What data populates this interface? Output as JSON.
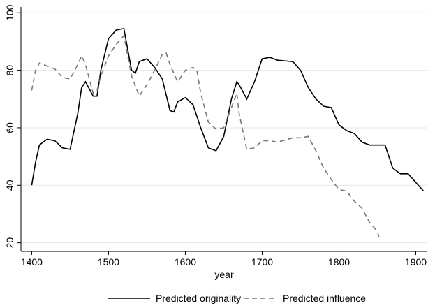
{
  "chart_data": {
    "type": "line",
    "xlabel": "year",
    "xlim": [
      1386,
      1915
    ],
    "xticks": [
      1400,
      1500,
      1600,
      1700,
      1800,
      1900
    ],
    "ylim": [
      17,
      102
    ],
    "yticks": [
      20,
      40,
      60,
      80,
      100
    ],
    "grid": true,
    "legend": "bottom",
    "series": [
      {
        "name": "Predicted originality",
        "color": "#000000",
        "dash": "solid",
        "x": [
          1400,
          1405,
          1410,
          1420,
          1430,
          1440,
          1450,
          1460,
          1465,
          1470,
          1480,
          1485,
          1490,
          1500,
          1510,
          1520,
          1530,
          1535,
          1540,
          1550,
          1560,
          1570,
          1580,
          1585,
          1590,
          1600,
          1610,
          1620,
          1630,
          1640,
          1650,
          1660,
          1667,
          1670,
          1680,
          1690,
          1700,
          1710,
          1720,
          1740,
          1750,
          1760,
          1770,
          1780,
          1790,
          1800,
          1810,
          1820,
          1830,
          1840,
          1850,
          1860,
          1870,
          1880,
          1890,
          1900,
          1910
        ],
        "values": [
          40,
          48,
          54,
          56,
          55.5,
          53,
          52.5,
          65,
          74,
          76,
          71,
          71,
          80,
          91,
          94,
          94.5,
          80,
          79,
          83,
          84,
          81,
          77,
          66,
          65.5,
          69,
          70.5,
          68,
          60,
          53,
          52,
          57,
          70,
          76,
          75,
          70,
          76,
          84,
          84.5,
          83.5,
          83,
          80,
          74,
          70,
          67.5,
          67,
          61,
          59,
          58,
          55,
          54,
          54,
          54,
          46,
          44,
          44,
          41,
          38
        ]
      },
      {
        "name": "Predicted influence",
        "color": "#777777",
        "dash": "dashed",
        "x": [
          1400,
          1405,
          1410,
          1420,
          1430,
          1440,
          1450,
          1460,
          1465,
          1470,
          1480,
          1485,
          1490,
          1500,
          1510,
          1520,
          1530,
          1540,
          1550,
          1560,
          1570,
          1575,
          1580,
          1590,
          1600,
          1610,
          1615,
          1620,
          1630,
          1640,
          1650,
          1660,
          1667,
          1670,
          1680,
          1690,
          1700,
          1710,
          1720,
          1740,
          1750,
          1760,
          1770,
          1780,
          1790,
          1800,
          1810,
          1820,
          1830,
          1840,
          1850,
          1853
        ],
        "values": [
          73,
          80,
          82.5,
          81.5,
          80.5,
          77.5,
          77,
          82,
          85,
          82,
          72,
          73,
          78,
          85,
          89,
          92,
          78,
          71,
          75,
          80,
          85.5,
          86,
          82,
          76,
          80,
          81,
          80,
          72,
          62,
          59.5,
          60,
          67,
          72,
          65,
          52.5,
          53,
          55.5,
          55.5,
          55,
          56.5,
          56.5,
          57,
          52,
          46,
          42,
          38.5,
          38,
          34.5,
          32,
          27,
          24,
          21
        ]
      }
    ]
  }
}
